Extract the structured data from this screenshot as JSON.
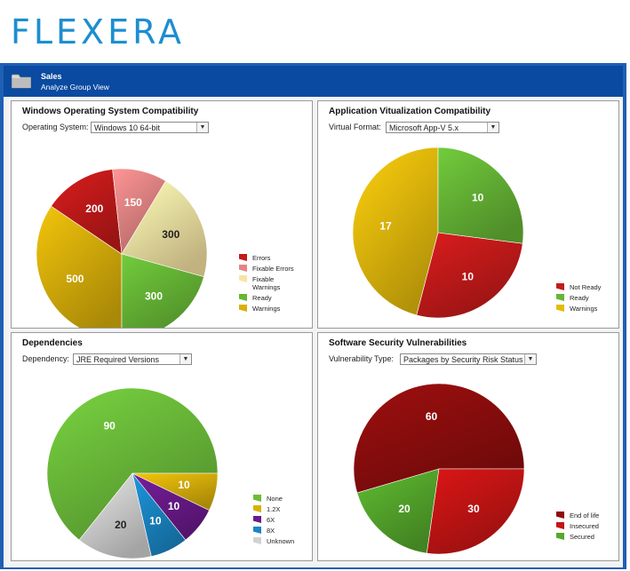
{
  "brand": {
    "logo_text": "FLEXERA",
    "color": "#1d8ecf"
  },
  "header": {
    "title": "Sales",
    "subtitle": "Analyze Group View",
    "folder_icon": "folder-icon",
    "bg": "#0a4aa0"
  },
  "panels": [
    {
      "title": "Windows Operating System Compatibility",
      "selector_label": "Operating System:",
      "selector_value": "Windows 10 64-bit"
    },
    {
      "title": "Application Vitualization Compatibility",
      "selector_label": "Virtual Format:",
      "selector_value": "Microsoft App-V 5.x"
    },
    {
      "title": "Dependencies",
      "selector_label": "Dependency:",
      "selector_value": "JRE Required Versions"
    },
    {
      "title": "Software Security Vulnerabilities",
      "selector_label": "Vulnerability Type:",
      "selector_value": "Packages by Security Risk Status"
    }
  ],
  "chart_data": [
    {
      "type": "pie",
      "title": "Windows Operating System Compatibility",
      "categories": [
        "Errors",
        "Fixable Errors",
        "Fixable Warnings",
        "Ready",
        "Warnings"
      ],
      "values": [
        200,
        150,
        300,
        300,
        500
      ],
      "colors": [
        "#c41a1a",
        "#e48585",
        "#f8e4a4",
        "#66b636",
        "#d9b00a"
      ],
      "legend": "right"
    },
    {
      "type": "pie",
      "title": "Application Vitualization Compatibility",
      "categories": [
        "Not Ready",
        "Ready",
        "Warnings"
      ],
      "values": [
        10,
        10,
        17
      ],
      "colors": [
        "#c41a1a",
        "#66b636",
        "#e4bb0c"
      ],
      "legend": "right"
    },
    {
      "type": "pie",
      "title": "Dependencies",
      "categories": [
        "None",
        "1.2X",
        "6X",
        "8X",
        "Unknown"
      ],
      "values": [
        90,
        10,
        10,
        10,
        20
      ],
      "colors": [
        "#6cbd3a",
        "#d9b00a",
        "#6a1a8a",
        "#1a86c4",
        "#d2d2d2"
      ],
      "legend": "right"
    },
    {
      "type": "pie",
      "title": "Software Security Vulnerabilities",
      "categories": [
        "End of life",
        "Insecured",
        "Secured"
      ],
      "values": [
        60,
        30,
        20
      ],
      "colors": [
        "#8e0d0d",
        "#c41414",
        "#55a82c"
      ],
      "legend": "right"
    }
  ]
}
